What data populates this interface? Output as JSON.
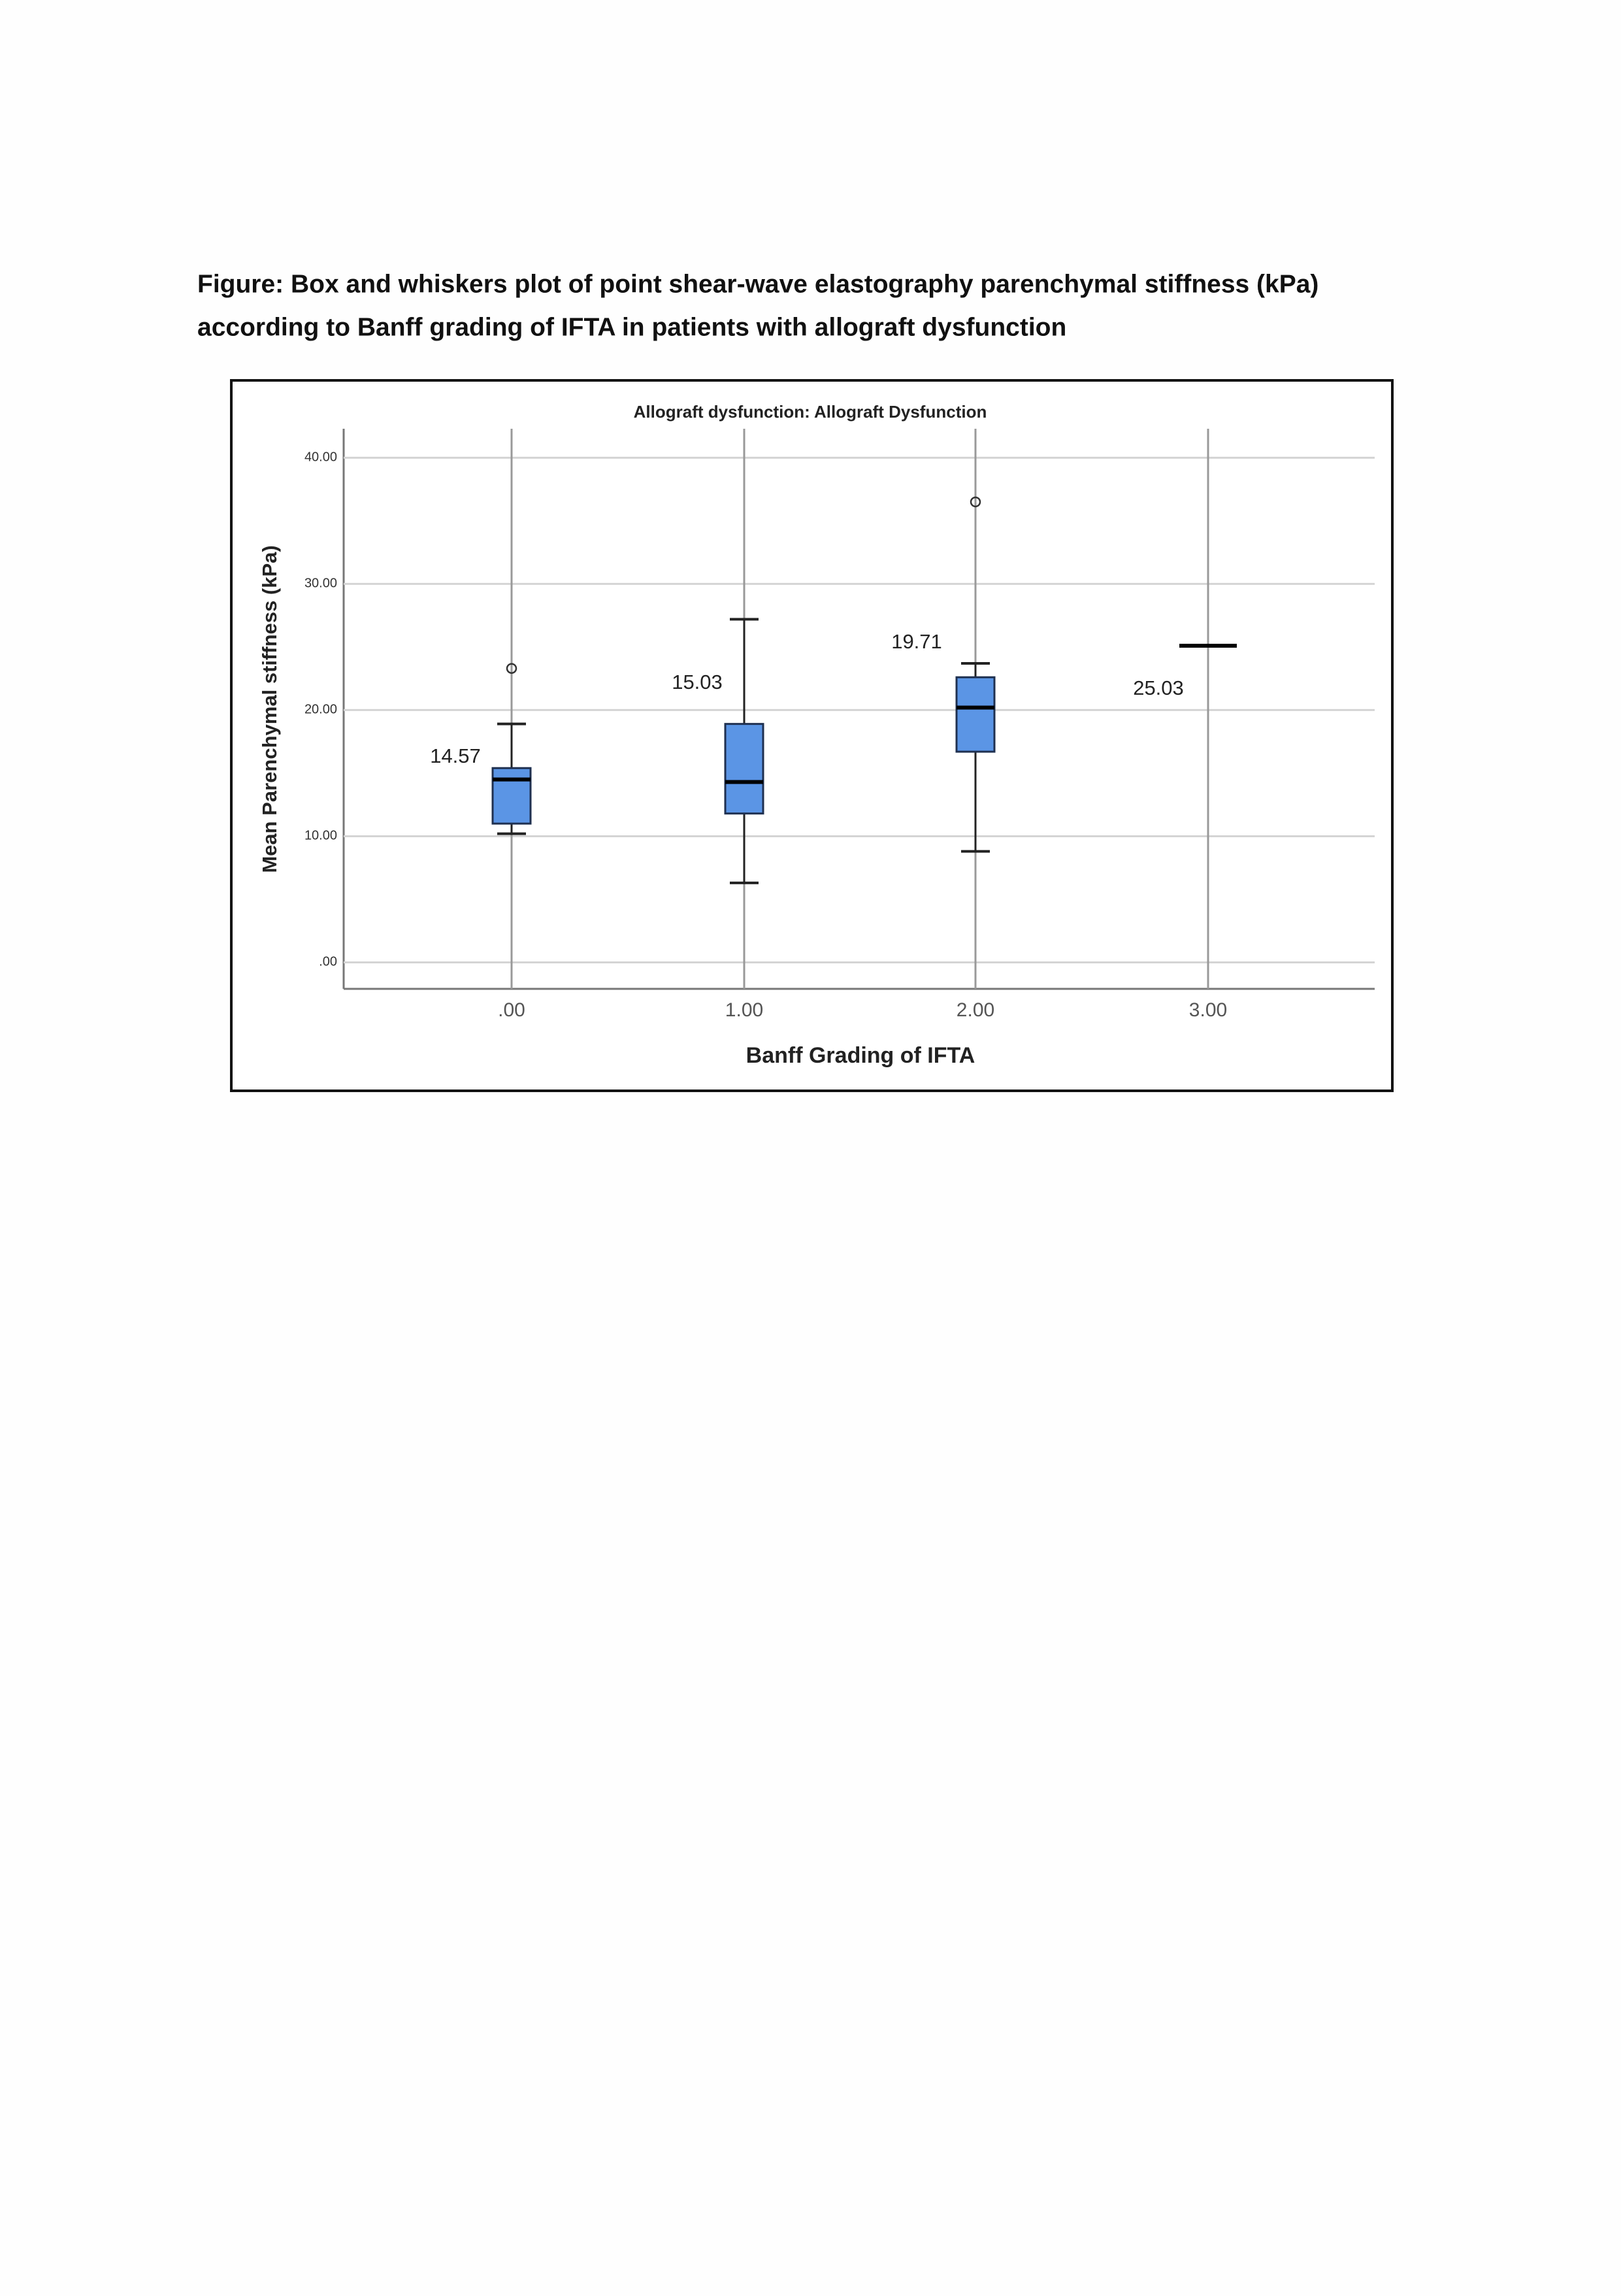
{
  "caption": [
    "Figure:  Box and whiskers plot of point shear-wave elastography parenchymal stiffness (kPa)",
    "according to Banff grading of IFTA in patients with allograft dysfunction"
  ],
  "chart_data": {
    "type": "box",
    "title": "Allograft dysfunction: Allograft Dysfunction",
    "x_label": "Banff Grading of IFTA",
    "y_label": "Mean Parenchymal stiffness (kPa)",
    "categories": [
      ".00",
      "1.00",
      "2.00",
      "3.00"
    ],
    "whisker_low": [
      10.2,
      6.3,
      8.8,
      null
    ],
    "q1": [
      11.0,
      11.8,
      16.7,
      null
    ],
    "median": [
      14.5,
      14.3,
      20.2,
      25.1
    ],
    "q3": [
      15.4,
      18.9,
      22.6,
      null
    ],
    "whisker_high": [
      18.9,
      27.2,
      23.7,
      null
    ],
    "outliers": [
      [
        23.3
      ],
      [],
      [
        36.5
      ],
      []
    ],
    "annotations": [
      14.57,
      15.03,
      19.71,
      25.03
    ],
    "color": "#5b95e5",
    "ylim": [
      -2.1,
      42.3
    ],
    "yticks": [
      {
        "value": 0,
        "label": ".00"
      },
      {
        "value": 10,
        "label": "10.00"
      },
      {
        "value": 20,
        "label": "20.00"
      },
      {
        "value": 30,
        "label": "30.00"
      },
      {
        "value": 40,
        "label": "40.00"
      }
    ],
    "grid": true
  }
}
